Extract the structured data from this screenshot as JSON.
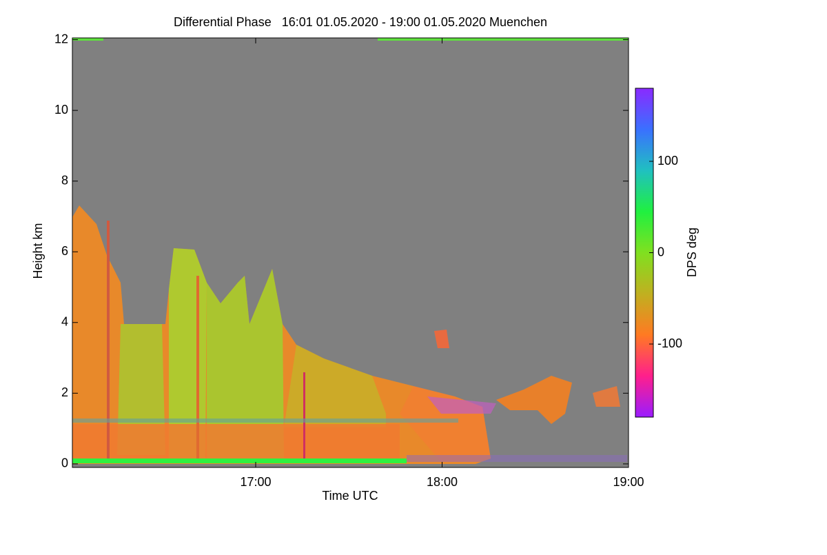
{
  "chart_data": {
    "type": "heatmap",
    "title": "Differential Phase   16:01 01.05.2020 - 19:00 01.05.2020 Muenchen",
    "x_label": "Time UTC",
    "y_label": "Height km",
    "colorbar_label": "DPS deg",
    "xlim": [
      961,
      1140
    ],
    "xticks": [
      {
        "value": 1020,
        "label": "17:00"
      },
      {
        "value": 1080,
        "label": "18:00"
      },
      {
        "value": 1140,
        "label": "19:00"
      }
    ],
    "ylim": [
      -0.1,
      12.05
    ],
    "yticks": [
      0,
      2,
      4,
      6,
      8,
      10,
      12
    ],
    "zlim": [
      -180,
      180
    ],
    "zticks": [
      -100,
      0,
      100
    ],
    "colormap": [
      "#9a1cff",
      "#ff1f8c",
      "#ff7a22",
      "#c0b020",
      "#80e020",
      "#20f040",
      "#20c0c0",
      "#3a70ff",
      "#8a2aff"
    ],
    "background": "#808080"
  }
}
